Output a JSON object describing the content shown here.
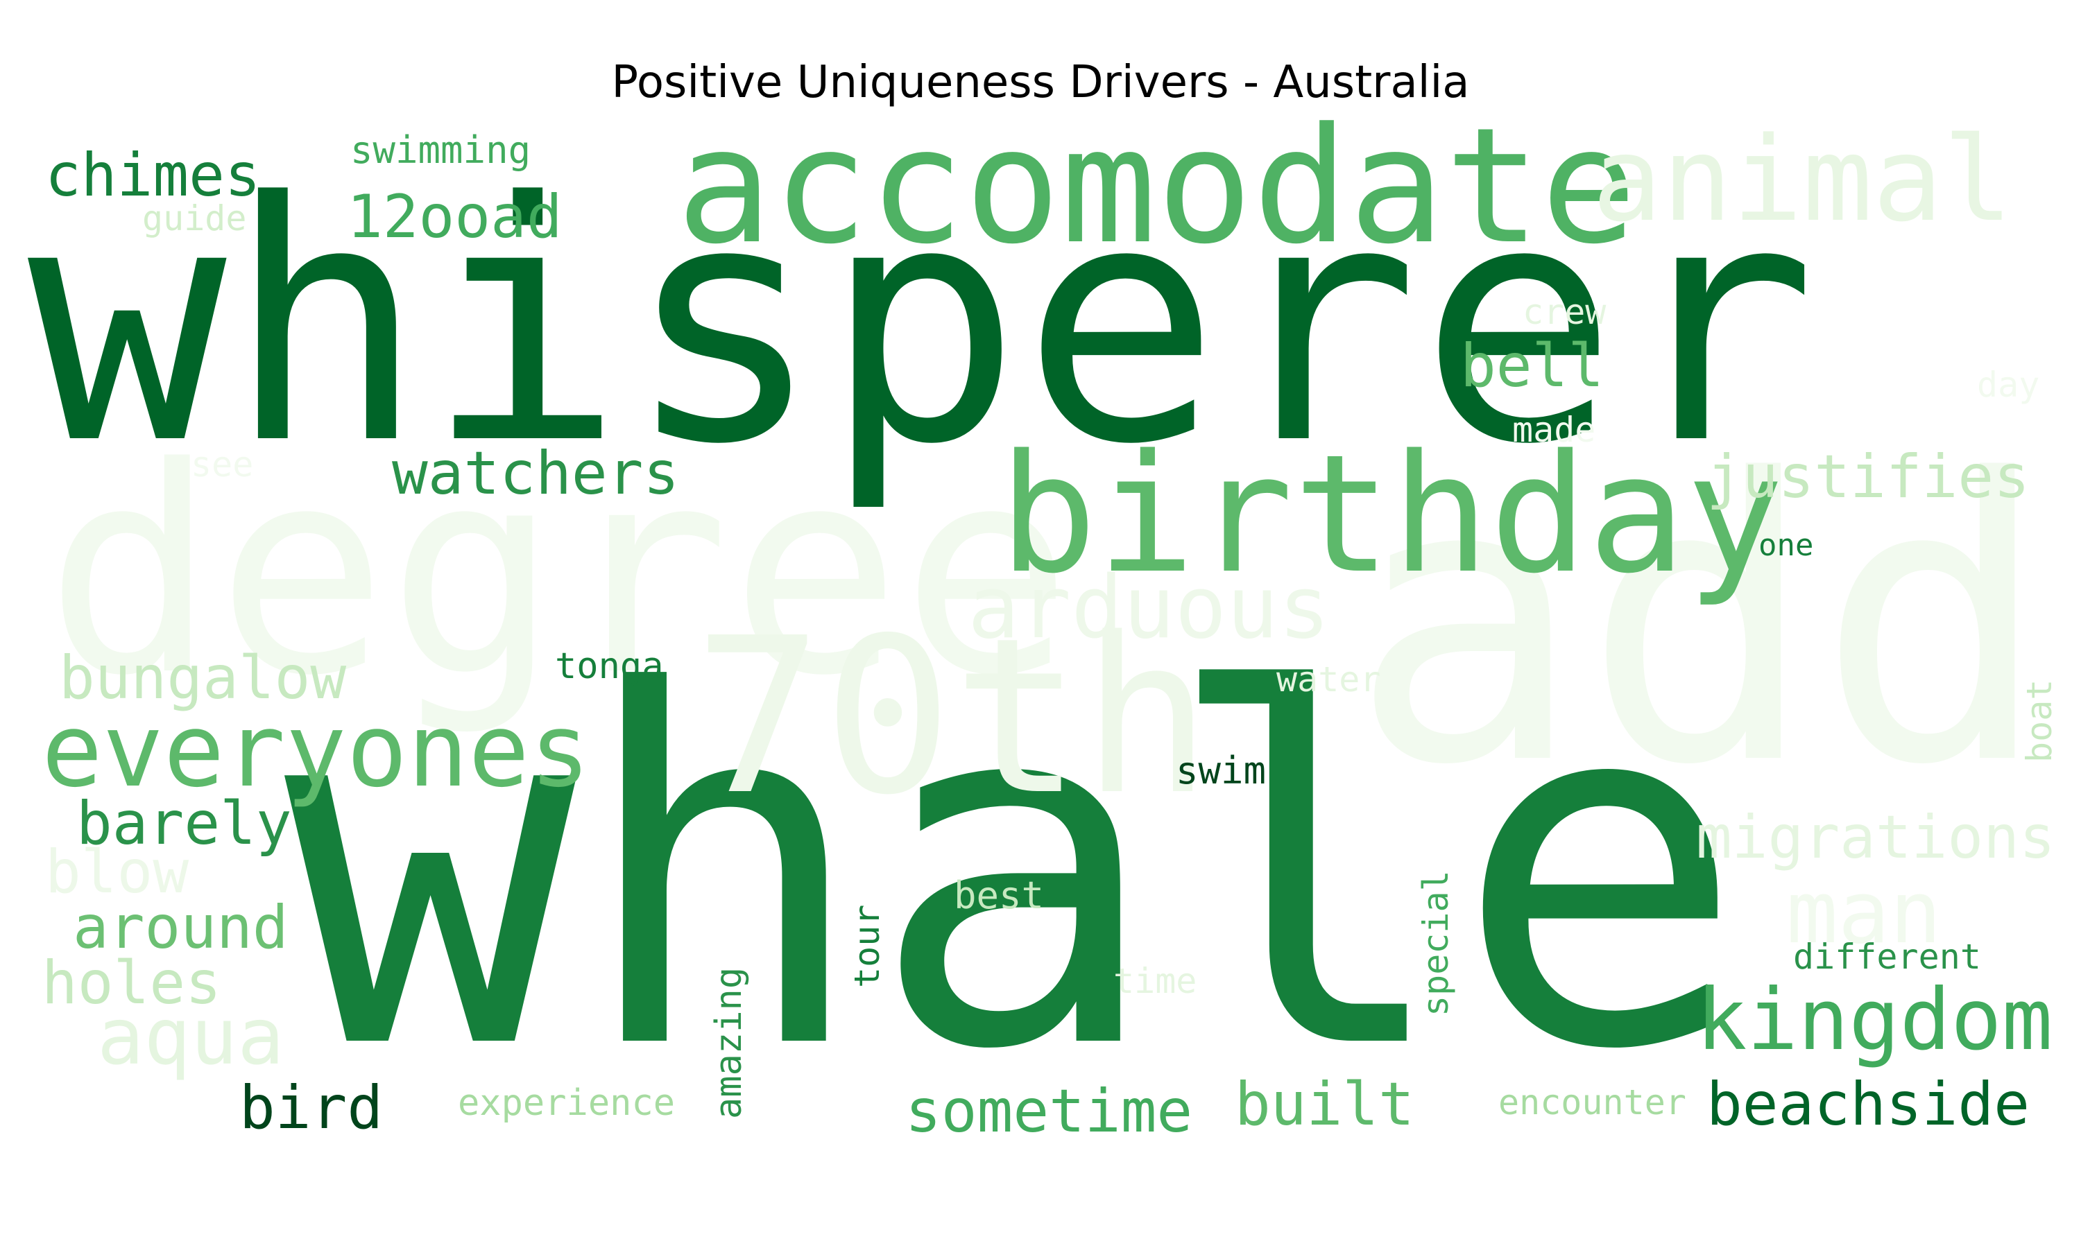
{
  "title": "Positive Uniqueness Drivers - Australia",
  "palette": {
    "darkest": "#00441b",
    "dark": "#006428",
    "dark_mid": "#157f3b",
    "mid": "#2a924a",
    "medium": "#41ab5d",
    "medium_light": "#5db96b",
    "light": "#8ccf8c",
    "lighter": "#a6dba0",
    "pale": "#c7e9c0",
    "palest": "#e5f5e0",
    "faint": "#edf8e9"
  },
  "words": [
    {
      "text": "whisperer",
      "color": "#006428"
    },
    {
      "text": "whale",
      "color": "#157f3b"
    },
    {
      "text": "add",
      "color": "#f2faef"
    },
    {
      "text": "degree",
      "color": "#f2faef"
    },
    {
      "text": "70th",
      "color": "#eef8ea"
    },
    {
      "text": "accomodate",
      "color": "#4fb264"
    },
    {
      "text": "birthday",
      "color": "#5db96b"
    },
    {
      "text": "animal",
      "color": "#e8f6e3"
    },
    {
      "text": "everyones",
      "color": "#5db96b"
    },
    {
      "text": "kingdom",
      "color": "#41ab5d"
    },
    {
      "text": "arduous",
      "color": "#eef8ea"
    },
    {
      "text": "chimes",
      "color": "#157f3b"
    },
    {
      "text": "12ooad",
      "color": "#41ab5d"
    },
    {
      "text": "watchers",
      "color": "#2a924a"
    },
    {
      "text": "bell",
      "color": "#5db96b"
    },
    {
      "text": "justifies",
      "color": "#c7e9c0"
    },
    {
      "text": "bungalow",
      "color": "#c7e9c0"
    },
    {
      "text": "barely",
      "color": "#2a924a"
    },
    {
      "text": "around",
      "color": "#6cc073"
    },
    {
      "text": "holes",
      "color": "#c7e9c0"
    },
    {
      "text": "aqua",
      "color": "#e5f5e0"
    },
    {
      "text": "blow",
      "color": "#edf8e9"
    },
    {
      "text": "bird",
      "color": "#00441b"
    },
    {
      "text": "sometime",
      "color": "#41ab5d"
    },
    {
      "text": "built",
      "color": "#5db96b"
    },
    {
      "text": "beachside",
      "color": "#006428"
    },
    {
      "text": "migrations",
      "color": "#e5f5e0"
    },
    {
      "text": "man",
      "color": "#f2faef"
    },
    {
      "text": "swimming",
      "color": "#41ab5d"
    },
    {
      "text": "guide",
      "color": "#d3eecb"
    },
    {
      "text": "crew",
      "color": "#e5f5e0"
    },
    {
      "text": "day",
      "color": "#f2faef"
    },
    {
      "text": "made",
      "color": "#f2faef"
    },
    {
      "text": "see",
      "color": "#f2faef"
    },
    {
      "text": "one",
      "color": "#157f3b"
    },
    {
      "text": "tonga",
      "color": "#157f3b"
    },
    {
      "text": "water",
      "color": "#e5f5e0"
    },
    {
      "text": "boat",
      "color": "#c7e9c0"
    },
    {
      "text": "swim",
      "color": "#00441b"
    },
    {
      "text": "best",
      "color": "#c7e9c0"
    },
    {
      "text": "tour",
      "color": "#157f3b"
    },
    {
      "text": "time",
      "color": "#e5f5e0"
    },
    {
      "text": "special",
      "color": "#41ab5d"
    },
    {
      "text": "different",
      "color": "#2a924a"
    },
    {
      "text": "amazing",
      "color": "#2a924a"
    },
    {
      "text": "experience",
      "color": "#a6dba0"
    },
    {
      "text": "encounter",
      "color": "#a6dba0"
    }
  ]
}
